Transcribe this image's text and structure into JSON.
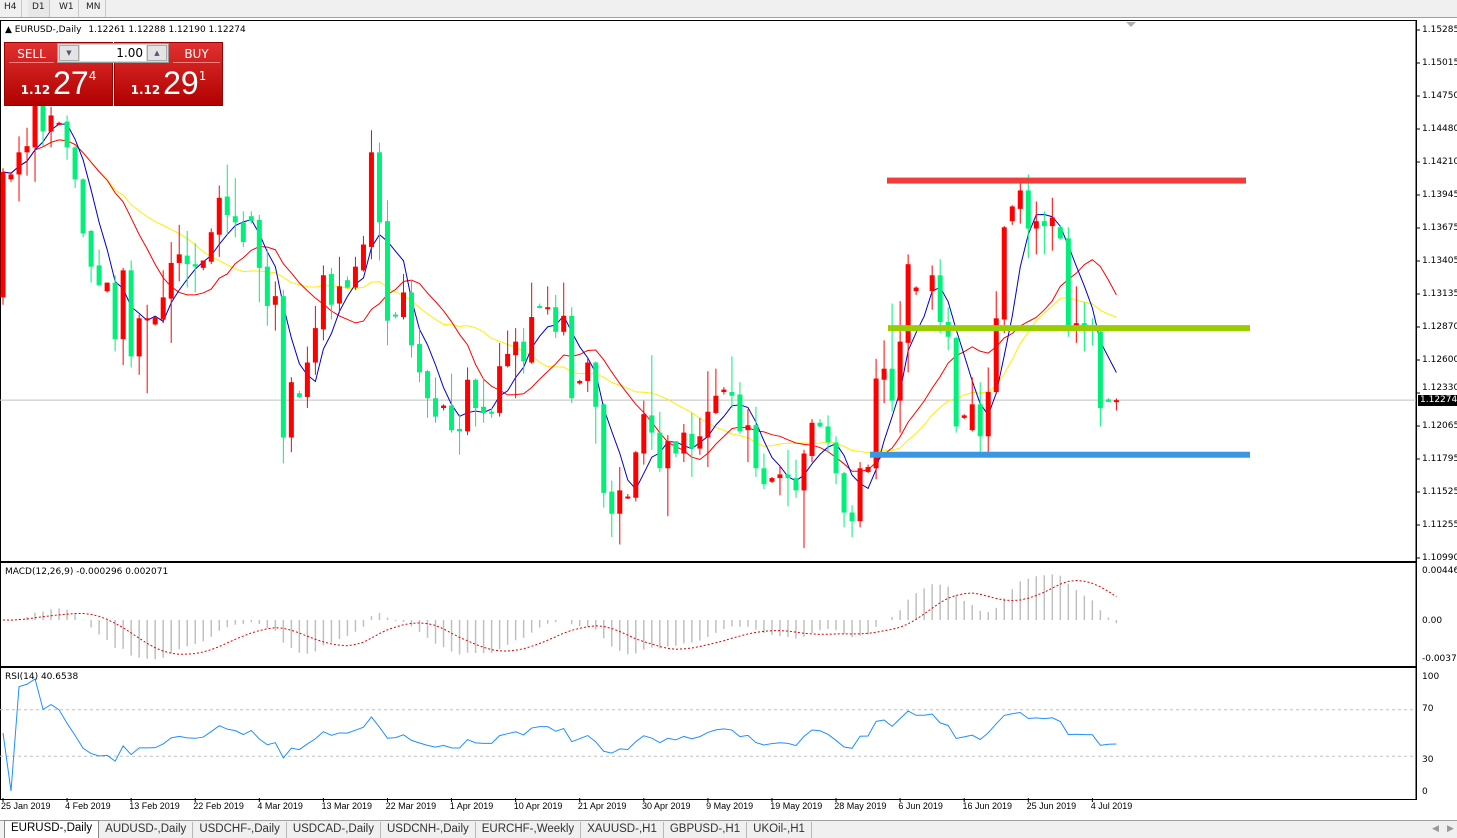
{
  "timeframes": [
    "H4",
    "D1",
    "W1",
    "MN"
  ],
  "active_timeframe": "D1",
  "chart": {
    "title": "EURUSD-,Daily",
    "ohlc": "1.12261 1.12288 1.12190 1.12274",
    "current_price": "1.12274"
  },
  "trade_panel": {
    "sell_label": "SELL",
    "buy_label": "BUY",
    "lot": "1.00",
    "sell_prefix": "1.12",
    "sell_big": "27",
    "sell_sup": "4",
    "buy_prefix": "1.12",
    "buy_big": "29",
    "buy_sup": "1"
  },
  "price_axis": [
    "1.15285",
    "1.15015",
    "1.14750",
    "1.14480",
    "1.14210",
    "1.13945",
    "1.13675",
    "1.13405",
    "1.13135",
    "1.12870",
    "1.12600",
    "1.12330",
    "1.12065",
    "1.11795",
    "1.11525",
    "1.11255",
    "1.10990"
  ],
  "macd": {
    "label": "MACD(12,26,9) -0.000296 0.002071",
    "axis": [
      "0.004465",
      "0.00",
      "-0.003715"
    ]
  },
  "rsi": {
    "label": "RSI(14) 40.6538",
    "axis": [
      "100",
      "70",
      "30",
      "0"
    ],
    "levels": [
      70,
      30
    ]
  },
  "x_labels": [
    "25 Jan 2019",
    "4 Feb 2019",
    "13 Feb 2019",
    "22 Feb 2019",
    "4 Mar 2019",
    "13 Mar 2019",
    "22 Mar 2019",
    "1 Apr 2019",
    "10 Apr 2019",
    "21 Apr 2019",
    "30 Apr 2019",
    "9 May 2019",
    "19 May 2019",
    "28 May 2019",
    "6 Jun 2019",
    "16 Jun 2019",
    "25 Jun 2019",
    "4 Jul 2019"
  ],
  "symbol_tabs": [
    "EURUSD-,Daily",
    "AUDUSD-,Daily",
    "USDCHF-,Daily",
    "USDCAD-,Daily",
    "USDCNH-,Daily",
    "EURCHF-,Weekly",
    "XAUUSD-,H1",
    "GBPUSD-,H1",
    "UKOil-,H1"
  ],
  "colors": {
    "bull": "#ff0000",
    "bear": "#00f07a",
    "ma_fast": "#0000cc",
    "ma_mid": "#ff0000",
    "ma_slow": "#ffee00",
    "resistance": "#f23c3c",
    "pivot": "#9acd00",
    "support": "#3c96e6"
  },
  "chart_data": {
    "type": "candlestick",
    "ylim": [
      1.1099,
      1.15285
    ],
    "horizontal_lines": [
      {
        "price": 1.1406,
        "color": "#f23c3c"
      },
      {
        "price": 1.1286,
        "color": "#9acd00"
      },
      {
        "price": 1.1183,
        "color": "#3c96e6"
      }
    ],
    "candles_ohlc": [
      [
        1.1311,
        1.1416,
        1.1305,
        1.1413
      ],
      [
        1.1407,
        1.1413,
        1.1405,
        1.1411
      ],
      [
        1.1411,
        1.1442,
        1.1389,
        1.1429
      ],
      [
        1.1429,
        1.1449,
        1.141,
        1.1434
      ],
      [
        1.1433,
        1.1472,
        1.1405,
        1.1468
      ],
      [
        1.1468,
        1.1472,
        1.1434,
        1.1446
      ],
      [
        1.1446,
        1.1466,
        1.1433,
        1.1459
      ],
      [
        1.1452,
        1.1454,
        1.1451,
        1.1453
      ],
      [
        1.1454,
        1.1459,
        1.1423,
        1.1433
      ],
      [
        1.1433,
        1.1434,
        1.14,
        1.1407
      ],
      [
        1.1407,
        1.1408,
        1.136,
        1.1363
      ],
      [
        1.1365,
        1.1366,
        1.1323,
        1.1336
      ],
      [
        1.1337,
        1.135,
        1.132,
        1.1321
      ],
      [
        1.1316,
        1.1323,
        1.1315,
        1.1323
      ],
      [
        1.1323,
        1.1329,
        1.1267,
        1.1277
      ],
      [
        1.1277,
        1.1335,
        1.1256,
        1.1333
      ],
      [
        1.1333,
        1.1341,
        1.1254,
        1.1263
      ],
      [
        1.1263,
        1.1297,
        1.1248,
        1.1294
      ],
      [
        1.1293,
        1.1305,
        1.1233,
        1.1294
      ],
      [
        1.1289,
        1.1296,
        1.1288,
        1.1295
      ],
      [
        1.1293,
        1.1333,
        1.129,
        1.1311
      ],
      [
        1.131,
        1.1356,
        1.1274,
        1.1339
      ],
      [
        1.1339,
        1.137,
        1.1324,
        1.1346
      ],
      [
        1.1345,
        1.1365,
        1.1319,
        1.1338
      ],
      [
        1.1338,
        1.1355,
        1.1315,
        1.1336
      ],
      [
        1.1335,
        1.1341,
        1.1333,
        1.1341
      ],
      [
        1.134,
        1.1367,
        1.1338,
        1.1364
      ],
      [
        1.1362,
        1.1402,
        1.1344,
        1.1392
      ],
      [
        1.1393,
        1.1419,
        1.1362,
        1.1378
      ],
      [
        1.1377,
        1.1408,
        1.136,
        1.1372
      ],
      [
        1.1372,
        1.1381,
        1.1352,
        1.1356
      ],
      [
        1.1377,
        1.1381,
        1.1371,
        1.1373
      ],
      [
        1.1374,
        1.1378,
        1.1307,
        1.1335
      ],
      [
        1.1336,
        1.135,
        1.1288,
        1.1304
      ],
      [
        1.1305,
        1.1324,
        1.1284,
        1.1312
      ],
      [
        1.1312,
        1.1317,
        1.1176,
        1.1197
      ],
      [
        1.1197,
        1.1246,
        1.1185,
        1.1242
      ],
      [
        1.1233,
        1.1235,
        1.1229,
        1.123
      ],
      [
        1.123,
        1.1271,
        1.1221,
        1.1258
      ],
      [
        1.1258,
        1.1304,
        1.1248,
        1.1286
      ],
      [
        1.1285,
        1.1337,
        1.1276,
        1.1329
      ],
      [
        1.133,
        1.1335,
        1.1293,
        1.1305
      ],
      [
        1.1306,
        1.1344,
        1.1298,
        1.132
      ],
      [
        1.1325,
        1.1328,
        1.1318,
        1.1319
      ],
      [
        1.1319,
        1.1344,
        1.1317,
        1.1336
      ],
      [
        1.1333,
        1.1361,
        1.1332,
        1.1354
      ],
      [
        1.1352,
        1.1447,
        1.1342,
        1.1429
      ],
      [
        1.1429,
        1.1437,
        1.1341,
        1.1372
      ],
      [
        1.1373,
        1.139,
        1.1272,
        1.1292
      ],
      [
        1.1297,
        1.1299,
        1.1294,
        1.1296
      ],
      [
        1.1295,
        1.133,
        1.1293,
        1.1315
      ],
      [
        1.1315,
        1.1325,
        1.1262,
        1.1272
      ],
      [
        1.1273,
        1.1285,
        1.1242,
        1.125
      ],
      [
        1.1251,
        1.1252,
        1.1213,
        1.1229
      ],
      [
        1.1229,
        1.1246,
        1.1209,
        1.1214
      ],
      [
        1.1221,
        1.1224,
        1.1219,
        1.1223
      ],
      [
        1.1223,
        1.1249,
        1.1201,
        1.1203
      ],
      [
        1.1204,
        1.1216,
        1.1183,
        1.1202
      ],
      [
        1.1202,
        1.1254,
        1.1199,
        1.1244
      ],
      [
        1.1244,
        1.1245,
        1.1206,
        1.1221
      ],
      [
        1.1222,
        1.1245,
        1.1209,
        1.1217
      ],
      [
        1.1218,
        1.1221,
        1.1213,
        1.1217
      ],
      [
        1.1217,
        1.1274,
        1.1214,
        1.1255
      ],
      [
        1.1255,
        1.1284,
        1.1254,
        1.1265
      ],
      [
        1.1264,
        1.1286,
        1.1229,
        1.1275
      ],
      [
        1.1275,
        1.1286,
        1.1249,
        1.1259
      ],
      [
        1.1258,
        1.1323,
        1.1257,
        1.1295
      ],
      [
        1.1304,
        1.1306,
        1.1302,
        1.1303
      ],
      [
        1.1302,
        1.132,
        1.1297,
        1.1303
      ],
      [
        1.1303,
        1.1313,
        1.1278,
        1.1283
      ],
      [
        1.1283,
        1.1323,
        1.128,
        1.1296
      ],
      [
        1.1296,
        1.1303,
        1.1225,
        1.1229
      ],
      [
        1.1241,
        1.1244,
        1.124,
        1.1243
      ],
      [
        1.1243,
        1.1261,
        1.1234,
        1.1258
      ],
      [
        1.1258,
        1.1259,
        1.1192,
        1.1222
      ],
      [
        1.1224,
        1.1225,
        1.114,
        1.1152
      ],
      [
        1.1153,
        1.1162,
        1.1116,
        1.1135
      ],
      [
        1.1135,
        1.1173,
        1.111,
        1.1154
      ],
      [
        1.1149,
        1.1151,
        1.1147,
        1.1149
      ],
      [
        1.1148,
        1.1186,
        1.1145,
        1.1185
      ],
      [
        1.1184,
        1.1227,
        1.1175,
        1.1216
      ],
      [
        1.1215,
        1.1264,
        1.1187,
        1.1201
      ],
      [
        1.1201,
        1.1218,
        1.1169,
        1.1172
      ],
      [
        1.1172,
        1.1199,
        1.1133,
        1.1194
      ],
      [
        1.1194,
        1.1194,
        1.1181,
        1.1184
      ],
      [
        1.1184,
        1.1208,
        1.1177,
        1.1201
      ],
      [
        1.12,
        1.1217,
        1.1165,
        1.1188
      ],
      [
        1.1188,
        1.1213,
        1.1183,
        1.1198
      ],
      [
        1.1197,
        1.1251,
        1.1173,
        1.1218
      ],
      [
        1.1217,
        1.1253,
        1.1216,
        1.1231
      ],
      [
        1.1234,
        1.1238,
        1.1232,
        1.1236
      ],
      [
        1.1234,
        1.1263,
        1.1221,
        1.1231
      ],
      [
        1.1232,
        1.1242,
        1.12,
        1.1202
      ],
      [
        1.1203,
        1.122,
        1.1177,
        1.1207
      ],
      [
        1.1207,
        1.1222,
        1.1165,
        1.1172
      ],
      [
        1.1172,
        1.1184,
        1.1155,
        1.1159
      ],
      [
        1.1161,
        1.1165,
        1.116,
        1.1164
      ],
      [
        1.1164,
        1.1174,
        1.115,
        1.1167
      ],
      [
        1.1167,
        1.1187,
        1.1141,
        1.1164
      ],
      [
        1.1164,
        1.1179,
        1.1148,
        1.1154
      ],
      [
        1.1154,
        1.1187,
        1.1107,
        1.1184
      ],
      [
        1.1182,
        1.1212,
        1.1177,
        1.1209
      ],
      [
        1.1209,
        1.1212,
        1.1205,
        1.1206
      ],
      [
        1.1206,
        1.1215,
        1.1185,
        1.1193
      ],
      [
        1.1193,
        1.1198,
        1.1159,
        1.1168
      ],
      [
        1.1168,
        1.1169,
        1.1124,
        1.1136
      ],
      [
        1.1136,
        1.1142,
        1.1116,
        1.1129
      ],
      [
        1.1129,
        1.1177,
        1.1124,
        1.1172
      ],
      [
        1.1169,
        1.1175,
        1.1168,
        1.1173
      ],
      [
        1.1172,
        1.1261,
        1.1163,
        1.1245
      ],
      [
        1.1244,
        1.1276,
        1.1225,
        1.1253
      ],
      [
        1.1253,
        1.1306,
        1.1218,
        1.1227
      ],
      [
        1.1227,
        1.1308,
        1.1201,
        1.1275
      ],
      [
        1.1274,
        1.1346,
        1.125,
        1.1338
      ],
      [
        1.1316,
        1.132,
        1.1313,
        1.1319
      ],
      null,
      [
        1.1316,
        1.1337,
        1.1301,
        1.1329
      ],
      [
        1.1329,
        1.1342,
        1.1282,
        1.1291
      ],
      [
        1.1291,
        1.1303,
        1.1268,
        1.1279
      ],
      [
        1.1278,
        1.1279,
        1.1201,
        1.1206
      ],
      [
        1.1213,
        1.1216,
        1.1212,
        1.1215
      ],
      [
        1.1203,
        1.1246,
        1.1202,
        1.1224
      ],
      [
        1.1224,
        1.1242,
        1.1181,
        1.1198
      ],
      [
        1.1198,
        1.1254,
        1.1185,
        1.1234
      ],
      [
        1.1234,
        1.1316,
        1.1233,
        1.1294
      ],
      [
        1.1293,
        1.1369,
        1.1282,
        1.1368
      ],
      [
        1.1373,
        1.1386,
        1.137,
        1.1385
      ],
      [
        1.1383,
        1.1404,
        1.1371,
        1.1398
      ],
      [
        1.1398,
        1.1411,
        1.1343,
        1.1367
      ],
      [
        1.1367,
        1.1389,
        1.1346,
        1.1373
      ],
      [
        1.1373,
        1.1381,
        1.1346,
        1.1369
      ],
      [
        1.1369,
        1.1392,
        1.1349,
        1.1376
      ],
      [
        1.1368,
        1.137,
        1.1358,
        1.1359
      ],
      [
        1.1359,
        1.1368,
        1.1279,
        1.1288
      ],
      [
        1.1288,
        1.132,
        1.1274,
        1.129
      ],
      [
        1.129,
        1.1307,
        1.1267,
        1.1288
      ],
      [
        1.1288,
        1.1294,
        1.1272,
        1.1287
      ],
      [
        1.1283,
        1.1286,
        1.1206,
        1.1221
      ],
      [
        1.1228,
        1.1229,
        1.1226,
        1.1226
      ],
      [
        1.12261,
        1.12288,
        1.1219,
        1.12274
      ]
    ]
  }
}
